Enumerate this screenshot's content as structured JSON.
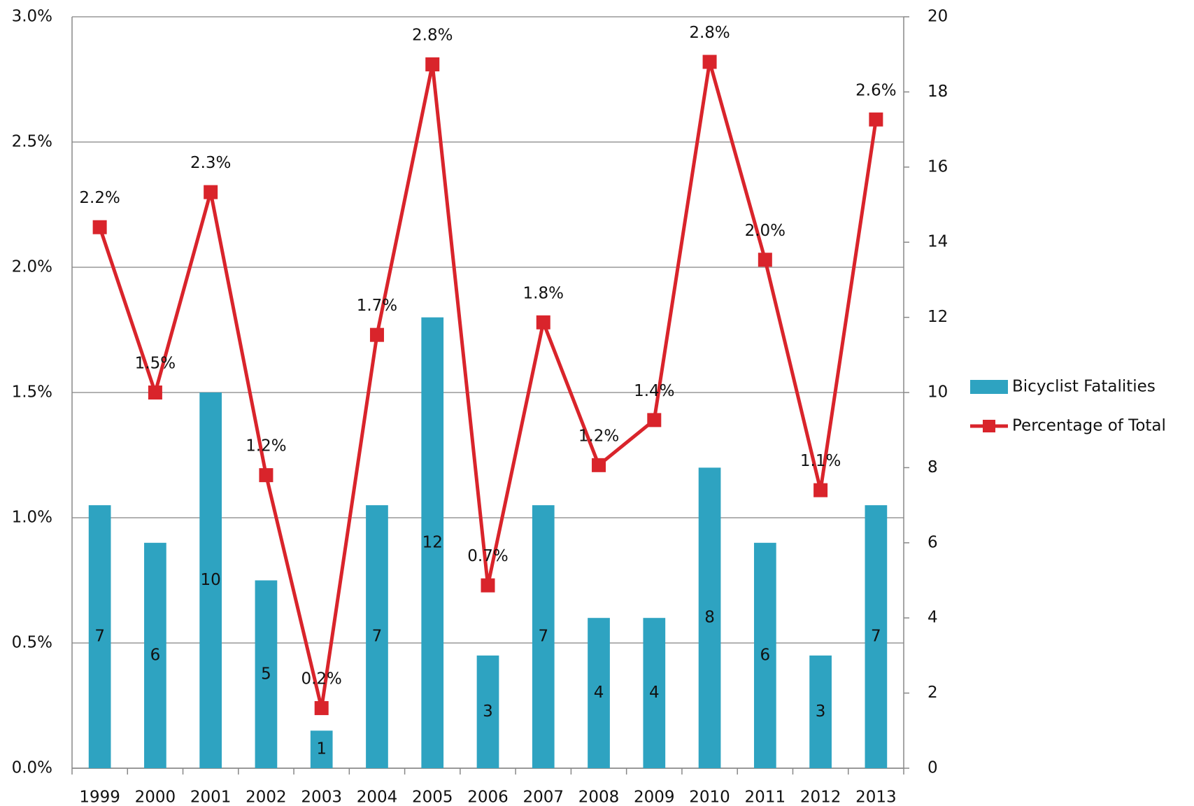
{
  "chart_data": {
    "type": "bar-line",
    "categories": [
      "1999",
      "2000",
      "2001",
      "2002",
      "2003",
      "2004",
      "2005",
      "2006",
      "2007",
      "2008",
      "2009",
      "2010",
      "2011",
      "2012",
      "2013"
    ],
    "series": [
      {
        "name": "Bicyclist Fatalities",
        "type": "bar",
        "axis": "y2",
        "color": "#2ea3c1",
        "values": [
          7,
          6,
          10,
          5,
          1,
          7,
          12,
          3,
          7,
          4,
          4,
          8,
          6,
          3,
          7
        ]
      },
      {
        "name": "Percentage of Total",
        "type": "line",
        "axis": "y",
        "color": "#d9242b",
        "values": [
          2.16,
          1.5,
          2.3,
          1.17,
          0.24,
          1.73,
          2.81,
          0.73,
          1.78,
          1.21,
          1.39,
          2.82,
          2.03,
          1.11,
          2.59
        ],
        "value_labels": [
          "2.2%",
          "1.5%",
          "2.3%",
          "1.2%",
          "0.2%",
          "1.7%",
          "2.8%",
          "0.7%",
          "1.8%",
          "1.2%",
          "1.4%",
          "2.8%",
          "2.0%",
          "1.1%",
          "2.6%"
        ]
      }
    ],
    "ylim": [
      0,
      3
    ],
    "yticks": [
      {
        "value": 0,
        "label": "0.0%"
      },
      {
        "value": 0.5,
        "label": "0.5%"
      },
      {
        "value": 1,
        "label": "1.0%"
      },
      {
        "value": 1.5,
        "label": "1.5%"
      },
      {
        "value": 2,
        "label": "2.0%"
      },
      {
        "value": 2.5,
        "label": "2.5%"
      },
      {
        "value": 3,
        "label": "3.0%"
      }
    ],
    "y2lim": [
      0,
      20
    ],
    "y2ticks": [
      0,
      2,
      4,
      6,
      8,
      10,
      12,
      14,
      16,
      18,
      20
    ],
    "grid": true,
    "legend": "right"
  }
}
